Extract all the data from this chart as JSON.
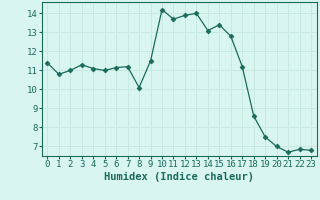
{
  "x": [
    0,
    1,
    2,
    3,
    4,
    5,
    6,
    7,
    8,
    9,
    10,
    11,
    12,
    13,
    14,
    15,
    16,
    17,
    18,
    19,
    20,
    21,
    22,
    23
  ],
  "y": [
    11.4,
    10.8,
    11.0,
    11.3,
    11.1,
    11.0,
    11.15,
    11.2,
    10.1,
    11.5,
    14.2,
    13.7,
    13.9,
    14.0,
    13.1,
    13.4,
    12.8,
    11.2,
    8.6,
    7.5,
    7.0,
    6.7,
    6.85,
    6.8
  ],
  "line_color": "#1a6b5a",
  "marker": "D",
  "marker_size": 2.5,
  "bg_color": "#d9f5f0",
  "grid_color": "#c8e8e2",
  "xlabel": "Humidex (Indice chaleur)",
  "ylim": [
    6.5,
    14.6
  ],
  "xlim": [
    -0.5,
    23.5
  ],
  "yticks": [
    7,
    8,
    9,
    10,
    11,
    12,
    13,
    14
  ],
  "xticks": [
    0,
    1,
    2,
    3,
    4,
    5,
    6,
    7,
    8,
    9,
    10,
    11,
    12,
    13,
    14,
    15,
    16,
    17,
    18,
    19,
    20,
    21,
    22,
    23
  ],
  "tick_label_fontsize": 6.5,
  "xlabel_fontsize": 7.5
}
